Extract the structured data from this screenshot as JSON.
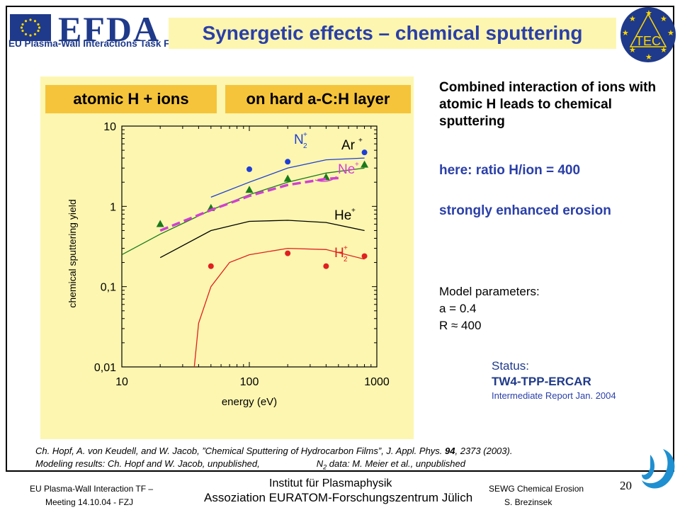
{
  "header": {
    "org_name": "EFDA",
    "org_subtitle": "EU Plasma-Wall Interactions Task Force",
    "slide_title": "Synergetic effects – chemical sputtering",
    "badge_text": "TEC",
    "flag_color": "#1f3a8a",
    "title_bg": "#fdf6b0",
    "title_color": "#2a3fa8"
  },
  "plot_tags": {
    "left": "atomic H + ions",
    "right": "on hard a-C:H layer",
    "tag_color": "#f5c43a"
  },
  "chart_data": {
    "type": "scatter",
    "title": "",
    "xlabel": "energy (eV)",
    "ylabel": "chemical sputtering yield",
    "xscale": "log",
    "yscale": "log",
    "xlim": [
      10,
      1000
    ],
    "ylim": [
      0.01,
      10
    ],
    "xticks": [
      "10",
      "100",
      "1000"
    ],
    "yticks": [
      "0,01",
      "0,1",
      "1",
      "10"
    ],
    "series": [
      {
        "name": "N2+",
        "color": "#1e3fd6",
        "marker": "circle",
        "points": [
          [
            100,
            2.9
          ],
          [
            200,
            3.6
          ],
          [
            800,
            4.7
          ]
        ],
        "model": [
          [
            50,
            1.3
          ],
          [
            100,
            2.0
          ],
          [
            200,
            3.0
          ],
          [
            400,
            3.8
          ],
          [
            800,
            4.0
          ]
        ]
      },
      {
        "name": "Ar+",
        "color": "#1a7a1a",
        "marker": "triangle",
        "points": [
          [
            20,
            0.6
          ],
          [
            50,
            0.95
          ],
          [
            100,
            1.6
          ],
          [
            200,
            2.2
          ],
          [
            400,
            2.3
          ],
          [
            800,
            3.3
          ]
        ],
        "model": [
          [
            10,
            0.25
          ],
          [
            20,
            0.45
          ],
          [
            50,
            0.9
          ],
          [
            100,
            1.4
          ],
          [
            200,
            2.0
          ],
          [
            400,
            2.6
          ],
          [
            800,
            3.0
          ]
        ]
      },
      {
        "name": "Ne+",
        "color": "#d040d0",
        "marker": "dashed",
        "model": [
          [
            20,
            0.5
          ],
          [
            50,
            0.9
          ],
          [
            100,
            1.35
          ],
          [
            200,
            1.85
          ],
          [
            400,
            2.2
          ],
          [
            500,
            2.25
          ]
        ]
      },
      {
        "name": "He+",
        "color": "#000000",
        "marker": "none",
        "model": [
          [
            20,
            0.23
          ],
          [
            50,
            0.5
          ],
          [
            100,
            0.65
          ],
          [
            200,
            0.67
          ],
          [
            400,
            0.63
          ],
          [
            800,
            0.5
          ]
        ]
      },
      {
        "name": "H2+",
        "color": "#e02020",
        "marker": "circle",
        "points": [
          [
            50,
            0.18
          ],
          [
            200,
            0.26
          ],
          [
            400,
            0.18
          ],
          [
            800,
            0.24
          ]
        ],
        "model": [
          [
            37,
            0.01
          ],
          [
            40,
            0.035
          ],
          [
            50,
            0.1
          ],
          [
            70,
            0.2
          ],
          [
            100,
            0.25
          ],
          [
            200,
            0.3
          ],
          [
            400,
            0.29
          ],
          [
            800,
            0.22
          ]
        ]
      }
    ],
    "legend_labels": [
      "N",
      "Ar",
      "Ne",
      "He",
      "H"
    ],
    "legend_subscripts": [
      "2",
      "",
      "",
      "",
      "2"
    ],
    "legend_superscript": "+",
    "plot_bg": "#fdf6b0"
  },
  "text_right": {
    "intro": "Combined interaction of ions with atomic H leads to chemical sputtering",
    "ratio": "here: ratio H/ion = 400",
    "effect": "strongly enhanced erosion",
    "model_heading": "Model parameters:",
    "model_a": "a = 0.4",
    "model_r": "R ≈ 400",
    "status_label": "Status:",
    "status_code": "TW4-TPP-ERCAR",
    "status_report": "Intermediate Report Jan. 2004"
  },
  "reference": {
    "line1_prefix": "Ch. Hopf, A. von Keudell, and W. Jacob, ”Chemical Sputtering of Hydrocarbon Films”, J. Appl. Phys. ",
    "line1_volume": "94",
    "line1_suffix": ", 2373 (2003).",
    "line2_a": "Modeling results: Ch. Hopf and W. Jacob, unpublished,",
    "line2_b_pre": "N",
    "line2_b_sub": "2",
    "line2_b_post": " data: M. Meier et al., unpublished"
  },
  "footer": {
    "left_line1": "EU Plasma-Wall Interaction TF –",
    "left_line2": "Meeting 14.10.04 - FZJ",
    "center_line1": "Institut für Plasmaphysik",
    "center_line2": "Assoziation EURATOM-Forschungszentrum Jülich",
    "right_line1": "SEWG Chemical Erosion",
    "right_line2": "S. Brezinsek",
    "page_number": "20"
  }
}
